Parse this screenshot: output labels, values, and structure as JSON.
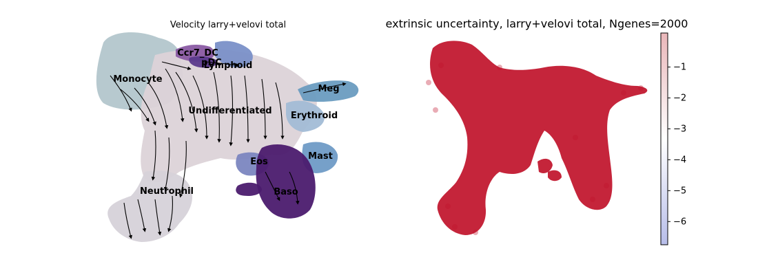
{
  "chart_data": [
    {
      "type": "scatter",
      "title": "Velocity larry+velovi total",
      "colors": {
        "Monocyte": "#b3c6cc",
        "Undifferentiated": "#dcd3d8",
        "Neutrophil": "#d6d2d9",
        "Ccr7_DC": "#8a5ba3",
        "pDC": "#5b3a8c",
        "Lymphoid": "#7a90c8",
        "Meg": "#6a9cc0",
        "Erythroid": "#a2bcd6",
        "Mast": "#6f9bc6",
        "Eos": "#7b86c0",
        "Baso": "#4b1b6e",
        "arrow": "#000000"
      },
      "clusters": [
        {
          "name": "Monocyte",
          "label": "Monocyte"
        },
        {
          "name": "Ccr7_DC",
          "label": "Ccr7_DC"
        },
        {
          "name": "pDC",
          "label": "pDC"
        },
        {
          "name": "Lymphoid",
          "label": "Lymphoid"
        },
        {
          "name": "Meg",
          "label": "Meg"
        },
        {
          "name": "Undifferentiated",
          "label": "Undifferentiated"
        },
        {
          "name": "Erythroid",
          "label": "Erythroid"
        },
        {
          "name": "Mast",
          "label": "Mast"
        },
        {
          "name": "Eos",
          "label": "Eos"
        },
        {
          "name": "Baso",
          "label": "Baso"
        },
        {
          "name": "Neutrophil",
          "label": "Neutrophil"
        }
      ]
    },
    {
      "type": "scatter",
      "title": "extrinsic uncertainty, larry+velovi total, Ngenes=2000",
      "point_color": "#c0122a",
      "colorbar": {
        "ticks": [
          -1,
          -2,
          -3,
          -4,
          -5,
          -6
        ],
        "tick_labels": [
          "−1",
          "−2",
          "−3",
          "−4",
          "−5",
          "−6"
        ],
        "range": [
          -6.75,
          0.1
        ],
        "colormap": [
          "#b7bde9",
          "#ffffff",
          "#e9b6b9"
        ]
      }
    }
  ]
}
